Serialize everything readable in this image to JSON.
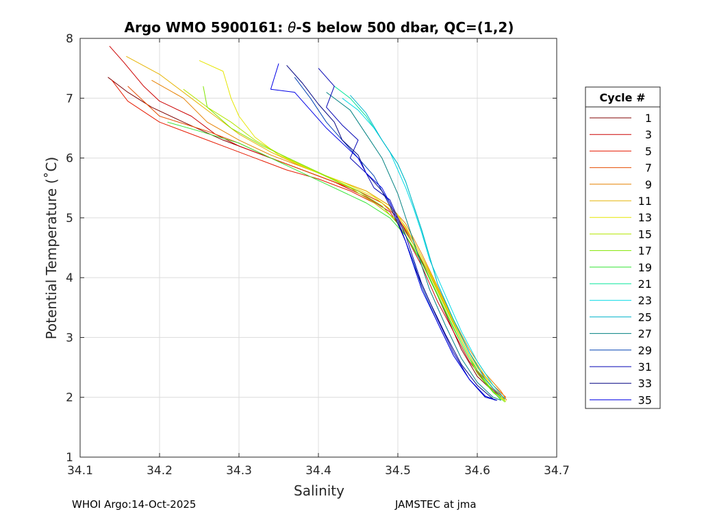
{
  "chart_data": {
    "type": "line",
    "title_prefix": "Argo WMO 5900161: ",
    "title_theta": "θ",
    "title_suffix": "-S below 500 dbar,  QC=(1,2)",
    "xlabel": "Salinity",
    "ylabel": "Potential Temperature (˚C)",
    "xlim": [
      34.1,
      34.7
    ],
    "ylim": [
      1,
      8
    ],
    "xticks": [
      34.1,
      34.2,
      34.3,
      34.4,
      34.5,
      34.6,
      34.7
    ],
    "xtick_labels": [
      "34.1",
      "34.2",
      "34.3",
      "34.4",
      "34.5",
      "34.6",
      "34.7"
    ],
    "yticks": [
      1,
      2,
      3,
      4,
      5,
      6,
      7,
      8
    ],
    "ytick_labels": [
      "1",
      "2",
      "3",
      "4",
      "5",
      "6",
      "7",
      "8"
    ],
    "grid": true,
    "legend_title": "Cycle #",
    "legend_position": "outside-right",
    "legend": [
      {
        "label": "1",
        "color": "#800000"
      },
      {
        "label": "3",
        "color": "#cc0000"
      },
      {
        "label": "5",
        "color": "#e61a00"
      },
      {
        "label": "7",
        "color": "#e64d00"
      },
      {
        "label": "9",
        "color": "#e68000"
      },
      {
        "label": "11",
        "color": "#e6b300"
      },
      {
        "label": "13",
        "color": "#e6e600"
      },
      {
        "label": "15",
        "color": "#b3e600"
      },
      {
        "label": "17",
        "color": "#80e600"
      },
      {
        "label": "19",
        "color": "#33e633"
      },
      {
        "label": "21",
        "color": "#00e699"
      },
      {
        "label": "23",
        "color": "#00d9e6"
      },
      {
        "label": "25",
        "color": "#00b3cc"
      },
      {
        "label": "27",
        "color": "#008080"
      },
      {
        "label": "29",
        "color": "#0040b3"
      },
      {
        "label": "31",
        "color": "#0000b3"
      },
      {
        "label": "33",
        "color": "#000080"
      },
      {
        "label": "35",
        "color": "#0000e6"
      }
    ],
    "series": [
      {
        "name": "1",
        "color": "#800000",
        "x": [
          34.135,
          34.16,
          34.19,
          34.23,
          34.28,
          34.33,
          34.37,
          34.41,
          34.45,
          34.48,
          34.5,
          34.52,
          34.54,
          34.56,
          34.58,
          34.6,
          34.62,
          34.635
        ],
        "y": [
          7.35,
          7.1,
          6.85,
          6.6,
          6.3,
          6.05,
          5.85,
          5.65,
          5.45,
          5.25,
          5.0,
          4.55,
          4.0,
          3.4,
          2.8,
          2.35,
          2.1,
          1.97
        ]
      },
      {
        "name": "3",
        "color": "#cc0000",
        "x": [
          34.137,
          34.155,
          34.18,
          34.2,
          34.24,
          34.27,
          34.3,
          34.34,
          34.38,
          34.42,
          34.46,
          34.49,
          34.51,
          34.53,
          34.55,
          34.57,
          34.59,
          34.61,
          34.63
        ],
        "y": [
          7.87,
          7.6,
          7.2,
          6.95,
          6.7,
          6.4,
          6.2,
          6.0,
          5.8,
          5.6,
          5.35,
          5.1,
          4.7,
          4.2,
          3.6,
          3.1,
          2.6,
          2.25,
          2.0
        ]
      },
      {
        "name": "5",
        "color": "#e61a00",
        "x": [
          34.14,
          34.16,
          34.2,
          34.25,
          34.3,
          34.33,
          34.36,
          34.4,
          34.44,
          34.47,
          34.5,
          34.52,
          34.54,
          34.56,
          34.58,
          34.6,
          34.62,
          34.635
        ],
        "y": [
          7.3,
          6.95,
          6.6,
          6.35,
          6.1,
          5.95,
          5.8,
          5.65,
          5.45,
          5.25,
          4.95,
          4.55,
          4.05,
          3.5,
          2.95,
          2.45,
          2.15,
          1.98
        ]
      },
      {
        "name": "7",
        "color": "#e64d00",
        "x": [
          34.16,
          34.2,
          34.26,
          34.3,
          34.34,
          34.37,
          34.41,
          34.45,
          34.48,
          34.5,
          34.52,
          34.54,
          34.56,
          34.58,
          34.6,
          34.62,
          34.636
        ],
        "y": [
          7.2,
          6.7,
          6.45,
          6.25,
          6.0,
          5.85,
          5.65,
          5.45,
          5.25,
          5.0,
          4.6,
          4.1,
          3.55,
          3.0,
          2.5,
          2.2,
          2.0
        ]
      },
      {
        "name": "9",
        "color": "#e68000",
        "x": [
          34.19,
          34.23,
          34.26,
          34.3,
          34.34,
          34.38,
          34.42,
          34.46,
          34.49,
          34.51,
          34.53,
          34.55,
          34.57,
          34.59,
          34.61,
          34.63,
          34.637
        ],
        "y": [
          7.3,
          7.0,
          6.6,
          6.3,
          6.05,
          5.85,
          5.65,
          5.45,
          5.2,
          4.9,
          4.4,
          3.85,
          3.3,
          2.8,
          2.4,
          2.1,
          1.95
        ]
      },
      {
        "name": "11",
        "color": "#e6b300",
        "x": [
          34.158,
          34.2,
          34.24,
          34.27,
          34.3,
          34.34,
          34.38,
          34.42,
          34.46,
          34.49,
          34.51,
          34.53,
          34.55,
          34.57,
          34.59,
          34.61,
          34.63
        ],
        "y": [
          7.7,
          7.4,
          7.0,
          6.7,
          6.4,
          6.1,
          5.85,
          5.65,
          5.45,
          5.2,
          4.85,
          4.35,
          3.8,
          3.25,
          2.75,
          2.35,
          2.05
        ]
      },
      {
        "name": "13",
        "color": "#e6e600",
        "x": [
          34.25,
          34.28,
          34.29,
          34.3,
          34.32,
          34.35,
          34.39,
          34.43,
          34.47,
          34.5,
          34.52,
          34.54,
          34.56,
          34.58,
          34.6,
          34.62,
          34.635
        ],
        "y": [
          7.63,
          7.45,
          7.0,
          6.7,
          6.35,
          6.05,
          5.8,
          5.6,
          5.35,
          5.05,
          4.6,
          4.1,
          3.55,
          3.0,
          2.5,
          2.15,
          1.95
        ]
      },
      {
        "name": "15",
        "color": "#b3e600",
        "x": [
          34.23,
          34.26,
          34.29,
          34.32,
          34.36,
          34.4,
          34.44,
          34.47,
          34.5,
          34.52,
          34.54,
          34.56,
          34.58,
          34.6,
          34.62,
          34.636
        ],
        "y": [
          7.15,
          6.85,
          6.6,
          6.3,
          6.0,
          5.75,
          5.5,
          5.25,
          4.95,
          4.55,
          4.05,
          3.5,
          2.95,
          2.45,
          2.1,
          1.93
        ]
      },
      {
        "name": "17",
        "color": "#80e600",
        "x": [
          34.255,
          34.26,
          34.29,
          34.33,
          34.37,
          34.41,
          34.45,
          34.48,
          34.5,
          34.52,
          34.54,
          34.56,
          34.58,
          34.6,
          34.62,
          34.635
        ],
        "y": [
          7.2,
          6.85,
          6.5,
          6.2,
          5.95,
          5.7,
          5.45,
          5.2,
          4.9,
          4.5,
          4.0,
          3.45,
          2.9,
          2.4,
          2.08,
          1.92
        ]
      },
      {
        "name": "19",
        "color": "#33e633",
        "x": [
          34.21,
          34.25,
          34.3,
          34.34,
          34.38,
          34.42,
          34.46,
          34.49,
          34.51,
          34.53,
          34.55,
          34.57,
          34.59,
          34.61,
          34.63
        ],
        "y": [
          6.6,
          6.45,
          6.25,
          6.0,
          5.75,
          5.5,
          5.25,
          5.0,
          4.7,
          4.25,
          3.7,
          3.15,
          2.65,
          2.25,
          1.95
        ]
      },
      {
        "name": "21",
        "color": "#00e699",
        "x": [
          34.42,
          34.44,
          34.46,
          34.48,
          34.5,
          34.51,
          34.52,
          34.53,
          34.54,
          34.55,
          34.57,
          34.59,
          34.61,
          34.63
        ],
        "y": [
          7.2,
          7.0,
          6.7,
          6.3,
          5.9,
          5.6,
          5.2,
          4.8,
          4.35,
          3.9,
          3.3,
          2.75,
          2.3,
          2.0
        ]
      },
      {
        "name": "23",
        "color": "#00d9e6",
        "x": [
          34.43,
          34.45,
          34.47,
          34.49,
          34.5,
          34.51,
          34.52,
          34.53,
          34.54,
          34.56,
          34.58,
          34.6,
          34.62,
          34.635
        ],
        "y": [
          7.0,
          6.8,
          6.5,
          6.1,
          5.8,
          5.5,
          5.15,
          4.75,
          4.3,
          3.7,
          3.1,
          2.6,
          2.2,
          1.97
        ]
      },
      {
        "name": "25",
        "color": "#00b3cc",
        "x": [
          34.44,
          34.46,
          34.48,
          34.5,
          34.51,
          34.52,
          34.53,
          34.54,
          34.55,
          34.57,
          34.59,
          34.61,
          34.63
        ],
        "y": [
          7.05,
          6.75,
          6.3,
          5.9,
          5.6,
          5.2,
          4.8,
          4.35,
          3.9,
          3.3,
          2.75,
          2.3,
          2.0
        ]
      },
      {
        "name": "27",
        "color": "#008080",
        "x": [
          34.41,
          34.44,
          34.46,
          34.48,
          34.49,
          34.5,
          34.51,
          34.52,
          34.53,
          34.54,
          34.56,
          34.58,
          34.6,
          34.62,
          34.63
        ],
        "y": [
          7.1,
          6.8,
          6.4,
          6.0,
          5.7,
          5.4,
          5.0,
          4.6,
          4.2,
          3.8,
          3.2,
          2.65,
          2.25,
          2.0,
          1.95
        ]
      },
      {
        "name": "29",
        "color": "#0040b3",
        "x": [
          34.37,
          34.39,
          34.41,
          34.43,
          34.45,
          34.47,
          34.48,
          34.49,
          34.5,
          34.51,
          34.52,
          34.53,
          34.55,
          34.57,
          34.59,
          34.61,
          34.625
        ],
        "y": [
          7.35,
          7.0,
          6.6,
          6.3,
          6.0,
          5.7,
          5.45,
          5.25,
          4.95,
          4.6,
          4.25,
          3.85,
          3.25,
          2.7,
          2.3,
          2.02,
          1.95
        ]
      },
      {
        "name": "31",
        "color": "#0000b3",
        "x": [
          34.4,
          34.42,
          34.41,
          34.43,
          34.45,
          34.44,
          34.46,
          34.47,
          34.49,
          34.5,
          34.51,
          34.52,
          34.53,
          34.55,
          34.57,
          34.59,
          34.61,
          34.625
        ],
        "y": [
          7.5,
          7.2,
          6.85,
          6.55,
          6.3,
          6.0,
          5.75,
          5.5,
          5.3,
          5.0,
          4.7,
          4.3,
          3.9,
          3.3,
          2.75,
          2.3,
          2.0,
          1.95
        ]
      },
      {
        "name": "33",
        "color": "#000080",
        "x": [
          34.36,
          34.38,
          34.4,
          34.42,
          34.43,
          34.45,
          34.46,
          34.48,
          34.49,
          34.5,
          34.51,
          34.52,
          34.54,
          34.56,
          34.58,
          34.6,
          34.62
        ],
        "y": [
          7.55,
          7.25,
          6.9,
          6.6,
          6.3,
          6.05,
          5.75,
          5.45,
          5.2,
          4.9,
          4.6,
          4.2,
          3.6,
          3.05,
          2.55,
          2.2,
          1.97
        ]
      },
      {
        "name": "35",
        "color": "#0000e6",
        "x": [
          34.35,
          34.34,
          34.37,
          34.39,
          34.41,
          34.43,
          34.45,
          34.46,
          34.48,
          34.49,
          34.5,
          34.51,
          34.52,
          34.53,
          34.55,
          34.57,
          34.59,
          34.61,
          34.623
        ],
        "y": [
          7.58,
          7.15,
          7.1,
          6.8,
          6.5,
          6.25,
          6.0,
          5.75,
          5.5,
          5.25,
          4.95,
          4.6,
          4.2,
          3.8,
          3.25,
          2.7,
          2.3,
          2.02,
          1.95
        ]
      }
    ]
  },
  "footer": {
    "left": "WHOI Argo:14-Oct-2025",
    "right": "JAMSTEC at jma"
  }
}
